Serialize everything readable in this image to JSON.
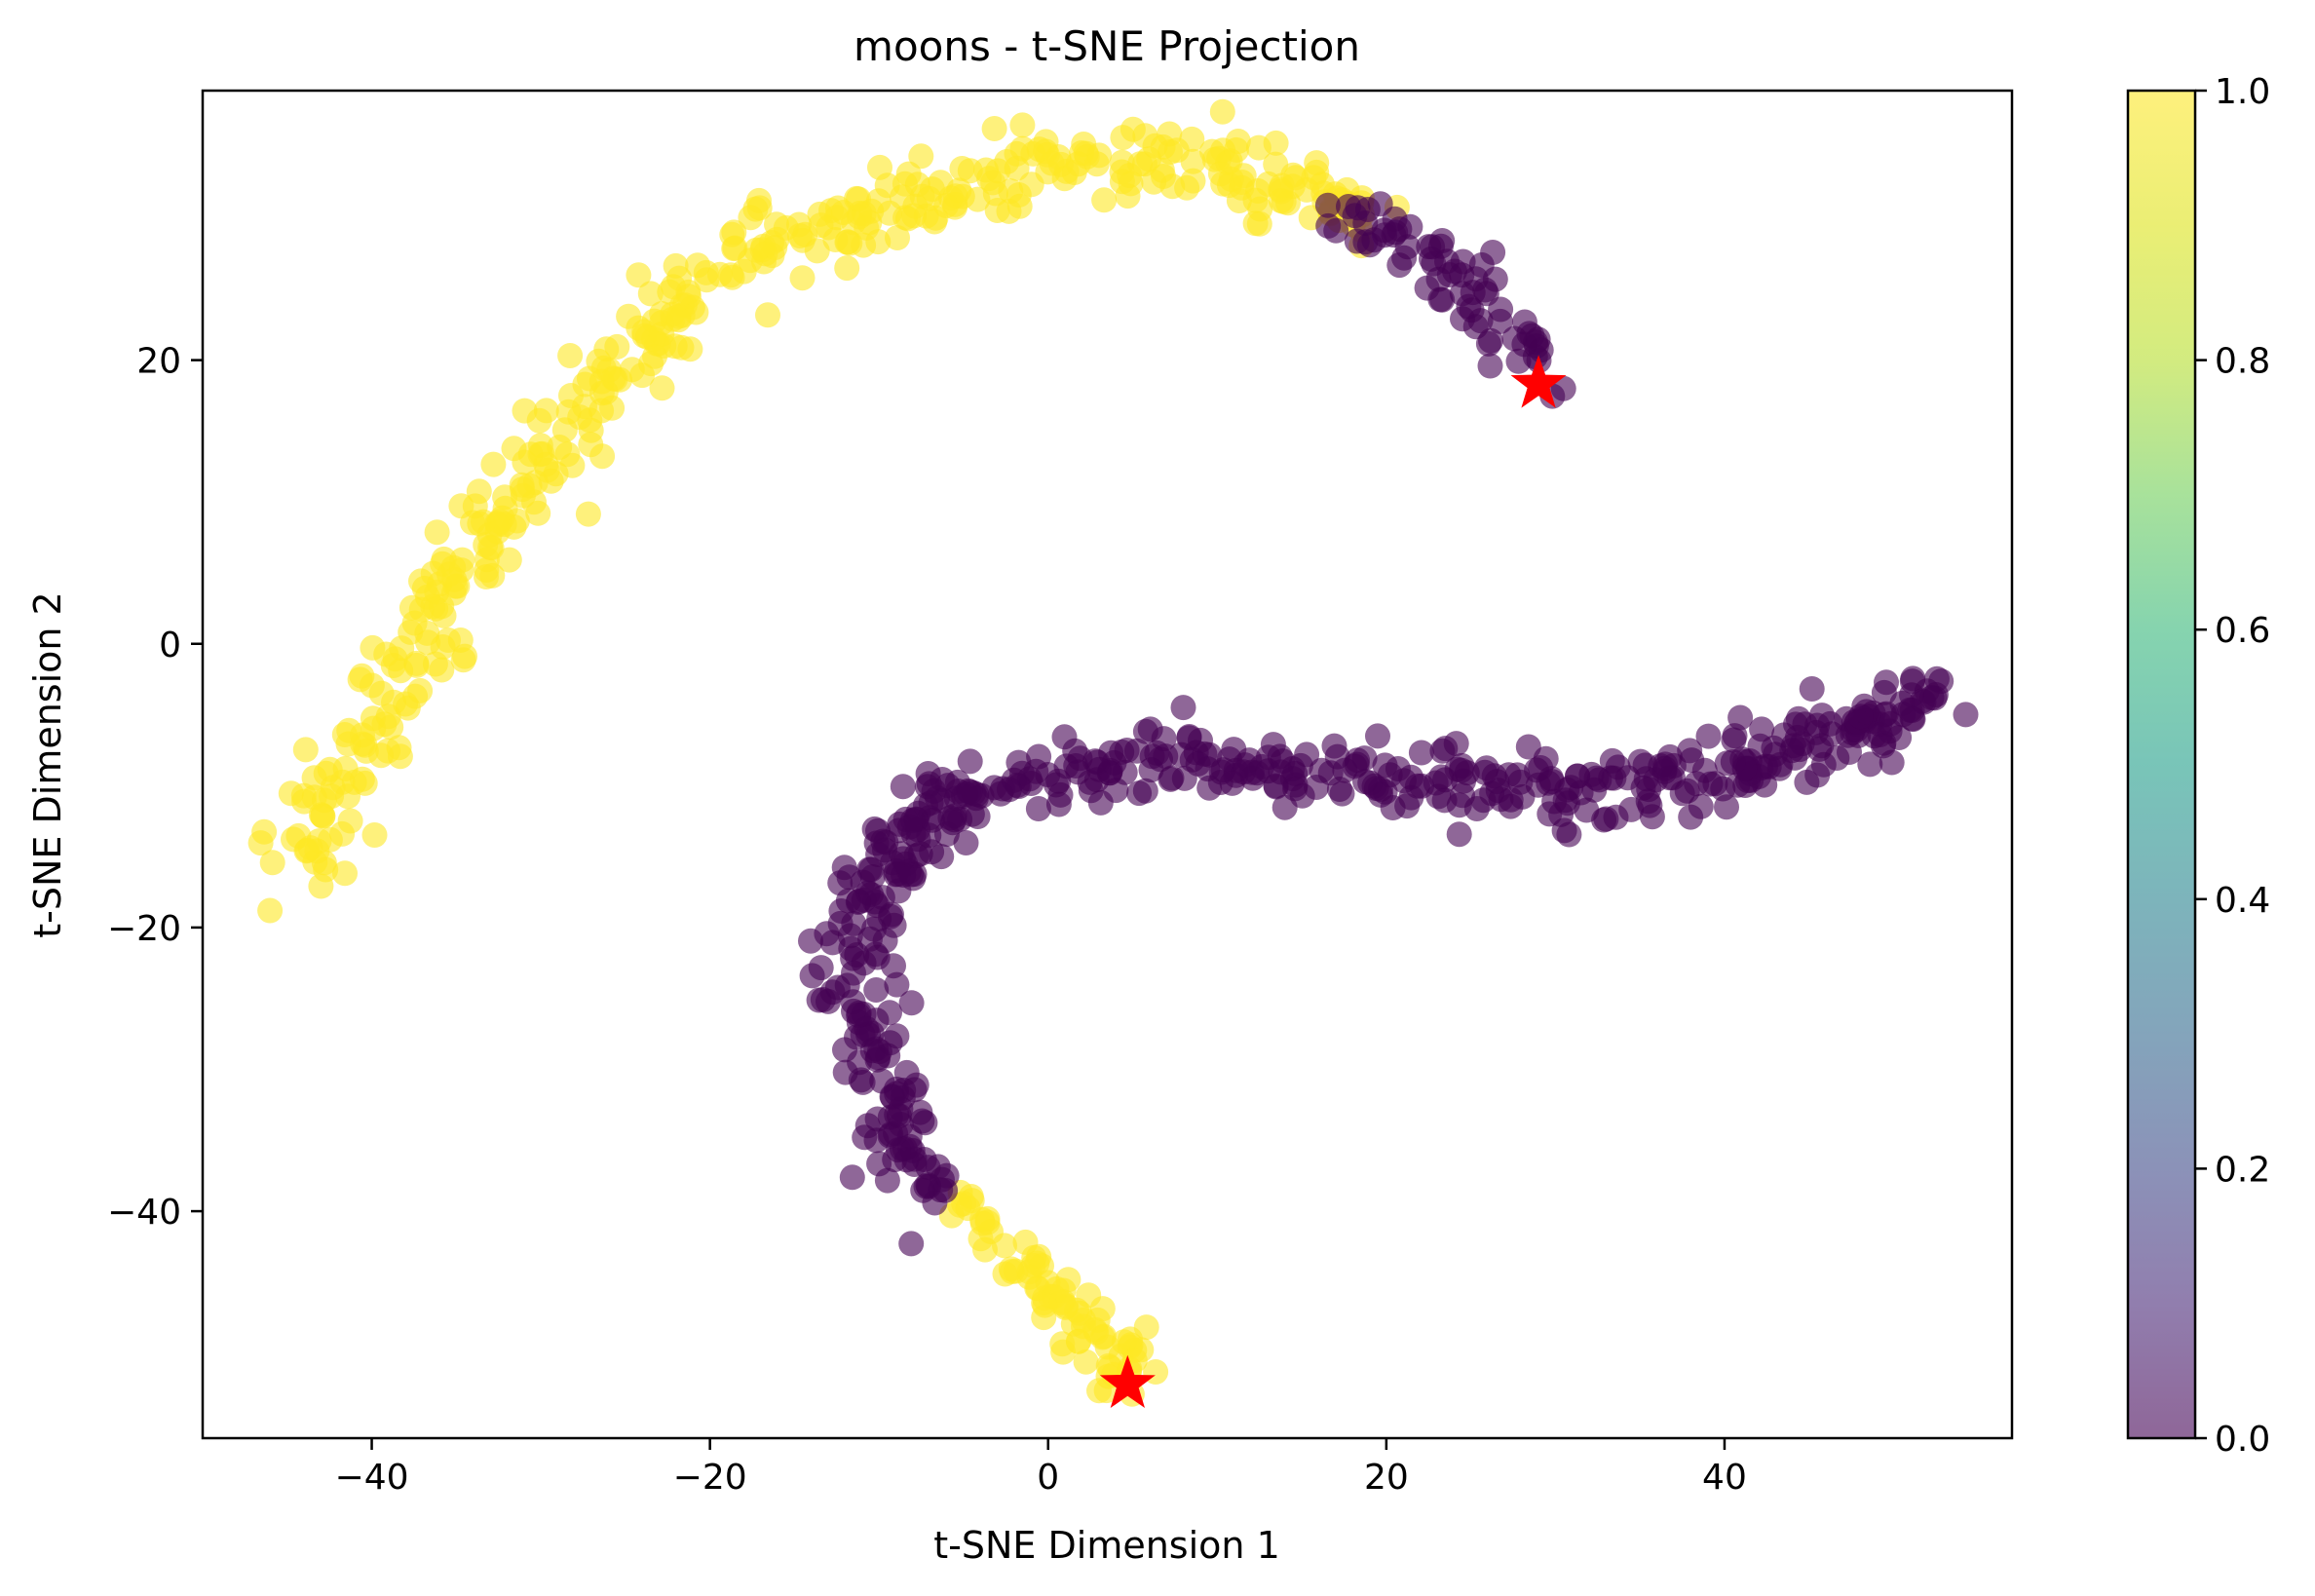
{
  "chart_data": {
    "type": "scatter",
    "title": "moons - t-SNE Projection",
    "xlabel": "t-SNE Dimension 1",
    "ylabel": "t-SNE Dimension 2",
    "xlim": [
      -50,
      57
    ],
    "ylim": [
      -56,
      39
    ],
    "x_ticks": [
      -40,
      -20,
      0,
      20,
      40
    ],
    "y_ticks": [
      -40,
      -20,
      0,
      20
    ],
    "x_tick_labels": [
      "−40",
      "−20",
      "0",
      "20",
      "40"
    ],
    "y_tick_labels": [
      "−40",
      "−20",
      "0",
      "20"
    ],
    "grid": false,
    "legend": "none",
    "colorbar": {
      "colormap": "viridis",
      "range": [
        0.0,
        1.0
      ],
      "ticks": [
        0.0,
        0.2,
        0.4,
        0.6,
        0.8,
        1.0
      ],
      "tick_labels": [
        "0.0",
        "0.2",
        "0.4",
        "0.6",
        "0.8",
        "1.0"
      ]
    },
    "colors": {
      "class_0": "#440154",
      "class_1": "#fde725",
      "marker_star": "#ff0000"
    },
    "alpha": 0.6,
    "series": [
      {
        "class_value": 1,
        "segments": [
          {
            "anchors": [
              [
                -44.5,
                -15.8
              ],
              [
                -42,
                -10
              ],
              [
                -39,
                -4
              ],
              [
                -37,
                1
              ],
              [
                -34,
                6
              ],
              [
                -31,
                11
              ],
              [
                -28,
                16
              ],
              [
                -25,
                20
              ],
              [
                -21,
                24
              ],
              [
                -16,
                28
              ],
              [
                -12,
                30
              ],
              [
                -8,
                31.5
              ],
              [
                -4,
                32.5
              ],
              [
                0,
                33.5
              ],
              [
                5,
                34
              ],
              [
                10,
                33.5
              ],
              [
                15,
                32
              ],
              [
                19,
                30
              ]
            ],
            "count": 430,
            "spread": 1.3
          },
          {
            "anchors": [
              [
                -5,
                -39
              ],
              [
                -3,
                -42
              ],
              [
                -1,
                -45
              ],
              [
                1,
                -47
              ],
              [
                3,
                -49
              ],
              [
                4.5,
                -51.5
              ]
            ],
            "count": 80,
            "spread": 1.0
          }
        ]
      },
      {
        "class_value": 0,
        "segments": [
          {
            "anchors": [
              [
                16.5,
                30
              ],
              [
                19.5,
                29.5
              ],
              [
                22,
                28
              ],
              [
                24.5,
                26.5
              ],
              [
                26.5,
                24
              ],
              [
                28,
                21.5
              ],
              [
                28.8,
                19.5
              ]
            ],
            "count": 70,
            "spread": 1.0
          },
          {
            "anchors": [
              [
                -6.5,
                -39
              ],
              [
                -8,
                -36
              ],
              [
                -9.5,
                -32
              ],
              [
                -10.5,
                -28
              ],
              [
                -11.5,
                -24
              ],
              [
                -11,
                -19
              ],
              [
                -9.5,
                -15
              ],
              [
                -7,
                -12
              ],
              [
                -4,
                -10.5
              ],
              [
                0,
                -9.5
              ],
              [
                5,
                -8.5
              ],
              [
                10,
                -8.5
              ],
              [
                15,
                -9
              ],
              [
                20,
                -9.5
              ],
              [
                25,
                -10
              ],
              [
                30,
                -10.2
              ],
              [
                35,
                -10
              ],
              [
                40,
                -9
              ],
              [
                45,
                -7
              ],
              [
                50,
                -5
              ],
              [
                52.5,
                -3.5
              ]
            ],
            "count": 520,
            "spread": 1.2
          }
        ]
      }
    ],
    "highlight_points": [
      {
        "x": 29.0,
        "y": 18.3
      },
      {
        "x": 4.7,
        "y": -52.2
      }
    ]
  }
}
